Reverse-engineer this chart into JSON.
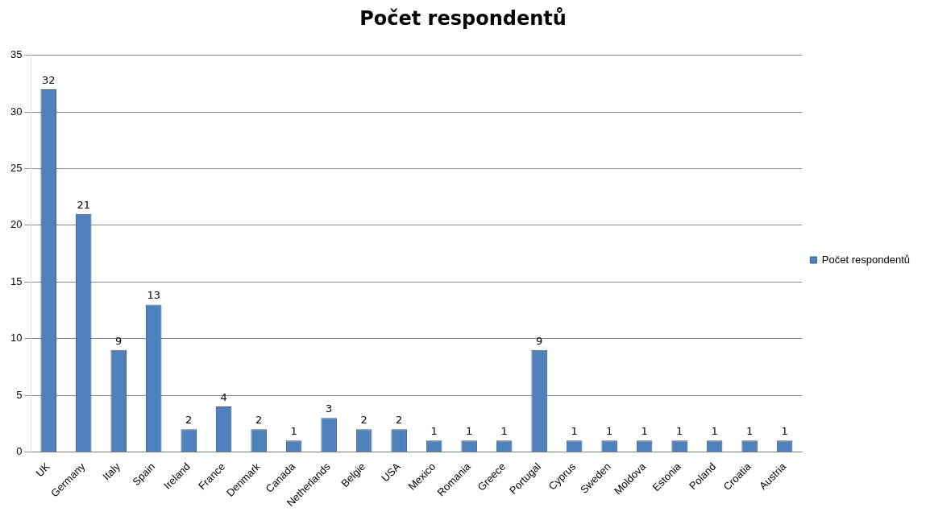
{
  "chart_data": {
    "type": "bar",
    "title": "Počet respondentů",
    "categories": [
      "UK",
      "Germany",
      "Italy",
      "Spain",
      "Ireland",
      "France",
      "Denmark",
      "Canada",
      "Netherlands",
      "Belgie",
      "USA",
      "Mexico",
      "Romania",
      "Greece",
      "Portugal",
      "Cyprus",
      "Sweden",
      "Moldova",
      "Estonia",
      "Poland",
      "Croatia",
      "Austria"
    ],
    "series": [
      {
        "name": "Počet respondentů",
        "color": "#4f81bd",
        "values": [
          32,
          21,
          9,
          13,
          2,
          4,
          2,
          1,
          3,
          2,
          2,
          1,
          1,
          1,
          9,
          1,
          1,
          1,
          1,
          1,
          1,
          1
        ]
      }
    ],
    "ylim": [
      0,
      35
    ],
    "yticks": [
      0,
      5,
      10,
      15,
      20,
      25,
      30,
      35
    ],
    "grid": "y",
    "legend": "right",
    "data_labels": true
  }
}
